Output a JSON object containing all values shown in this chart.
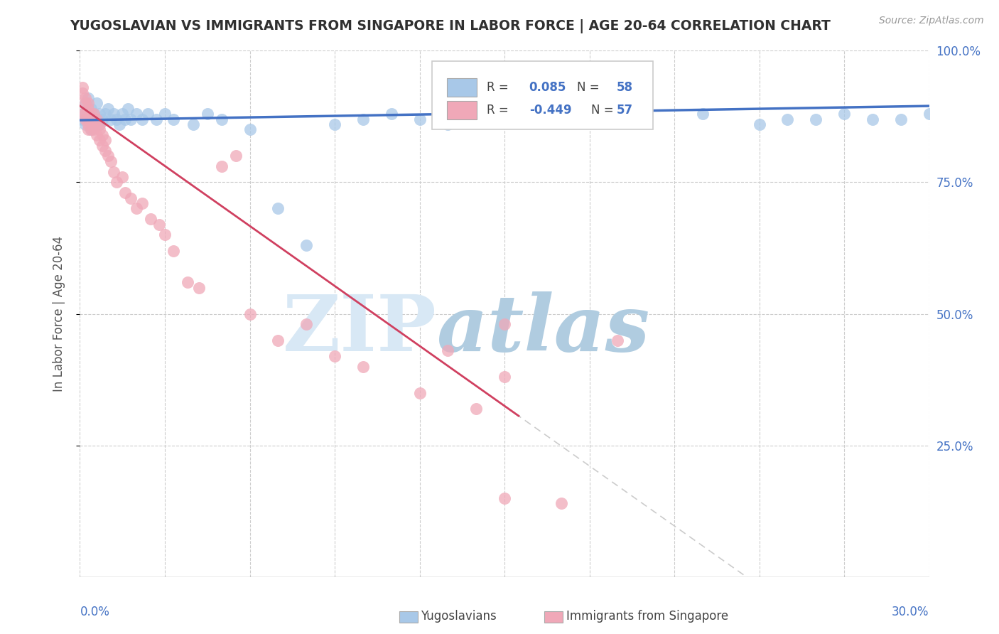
{
  "title": "YUGOSLAVIAN VS IMMIGRANTS FROM SINGAPORE IN LABOR FORCE | AGE 20-64 CORRELATION CHART",
  "source": "Source: ZipAtlas.com",
  "ylabel_left": "In Labor Force | Age 20-64",
  "legend_blue_label": "Yugoslavians",
  "legend_pink_label": "Immigrants from Singapore",
  "blue_color": "#a8c8e8",
  "pink_color": "#f0a8b8",
  "blue_line_color": "#4472c4",
  "pink_line_color": "#d04060",
  "pink_dashed_color": "#d0b0b8",
  "title_color": "#303030",
  "axis_label_color": "#4472c4",
  "watermark_zip_color": "#c8d8ee",
  "watermark_atlas_color": "#a8c8e0",
  "xmin": 0.0,
  "xmax": 0.3,
  "ymin": 0.0,
  "ymax": 1.0,
  "figwidth": 14.06,
  "figheight": 8.92,
  "dpi": 100,
  "blue_x": [
    0.001,
    0.001,
    0.002,
    0.002,
    0.003,
    0.003,
    0.003,
    0.004,
    0.004,
    0.005,
    0.005,
    0.006,
    0.006,
    0.007,
    0.007,
    0.008,
    0.009,
    0.01,
    0.011,
    0.012,
    0.013,
    0.014,
    0.015,
    0.016,
    0.017,
    0.018,
    0.02,
    0.022,
    0.024,
    0.027,
    0.03,
    0.033,
    0.04,
    0.045,
    0.05,
    0.06,
    0.07,
    0.08,
    0.09,
    0.1,
    0.11,
    0.12,
    0.13,
    0.15,
    0.17,
    0.18,
    0.2,
    0.22,
    0.24,
    0.25,
    0.27,
    0.28,
    0.29,
    0.3,
    0.19,
    0.14,
    0.16,
    0.26
  ],
  "blue_y": [
    0.87,
    0.88,
    0.86,
    0.9,
    0.87,
    0.88,
    0.91,
    0.85,
    0.89,
    0.88,
    0.86,
    0.9,
    0.87,
    0.88,
    0.86,
    0.87,
    0.88,
    0.89,
    0.87,
    0.88,
    0.87,
    0.86,
    0.88,
    0.87,
    0.89,
    0.87,
    0.88,
    0.87,
    0.88,
    0.87,
    0.88,
    0.87,
    0.86,
    0.88,
    0.87,
    0.85,
    0.7,
    0.63,
    0.86,
    0.87,
    0.88,
    0.87,
    0.86,
    0.87,
    0.92,
    0.88,
    0.87,
    0.88,
    0.86,
    0.87,
    0.88,
    0.87,
    0.87,
    0.88,
    0.97,
    0.88,
    0.87,
    0.87
  ],
  "pink_x": [
    0.001,
    0.001,
    0.001,
    0.002,
    0.002,
    0.002,
    0.002,
    0.003,
    0.003,
    0.003,
    0.003,
    0.003,
    0.004,
    0.004,
    0.004,
    0.005,
    0.005,
    0.005,
    0.006,
    0.006,
    0.007,
    0.007,
    0.007,
    0.008,
    0.008,
    0.009,
    0.009,
    0.01,
    0.011,
    0.012,
    0.013,
    0.015,
    0.016,
    0.018,
    0.02,
    0.022,
    0.025,
    0.028,
    0.03,
    0.033,
    0.038,
    0.042,
    0.05,
    0.055,
    0.06,
    0.07,
    0.08,
    0.09,
    0.1,
    0.12,
    0.13,
    0.14,
    0.15,
    0.15,
    0.17,
    0.19,
    0.15
  ],
  "pink_y": [
    0.93,
    0.92,
    0.88,
    0.91,
    0.9,
    0.88,
    0.87,
    0.9,
    0.89,
    0.87,
    0.86,
    0.85,
    0.88,
    0.87,
    0.85,
    0.88,
    0.86,
    0.85,
    0.87,
    0.84,
    0.86,
    0.85,
    0.83,
    0.84,
    0.82,
    0.83,
    0.81,
    0.8,
    0.79,
    0.77,
    0.75,
    0.76,
    0.73,
    0.72,
    0.7,
    0.71,
    0.68,
    0.67,
    0.65,
    0.62,
    0.56,
    0.55,
    0.78,
    0.8,
    0.5,
    0.45,
    0.48,
    0.42,
    0.4,
    0.35,
    0.43,
    0.32,
    0.38,
    0.48,
    0.14,
    0.45,
    0.15
  ]
}
